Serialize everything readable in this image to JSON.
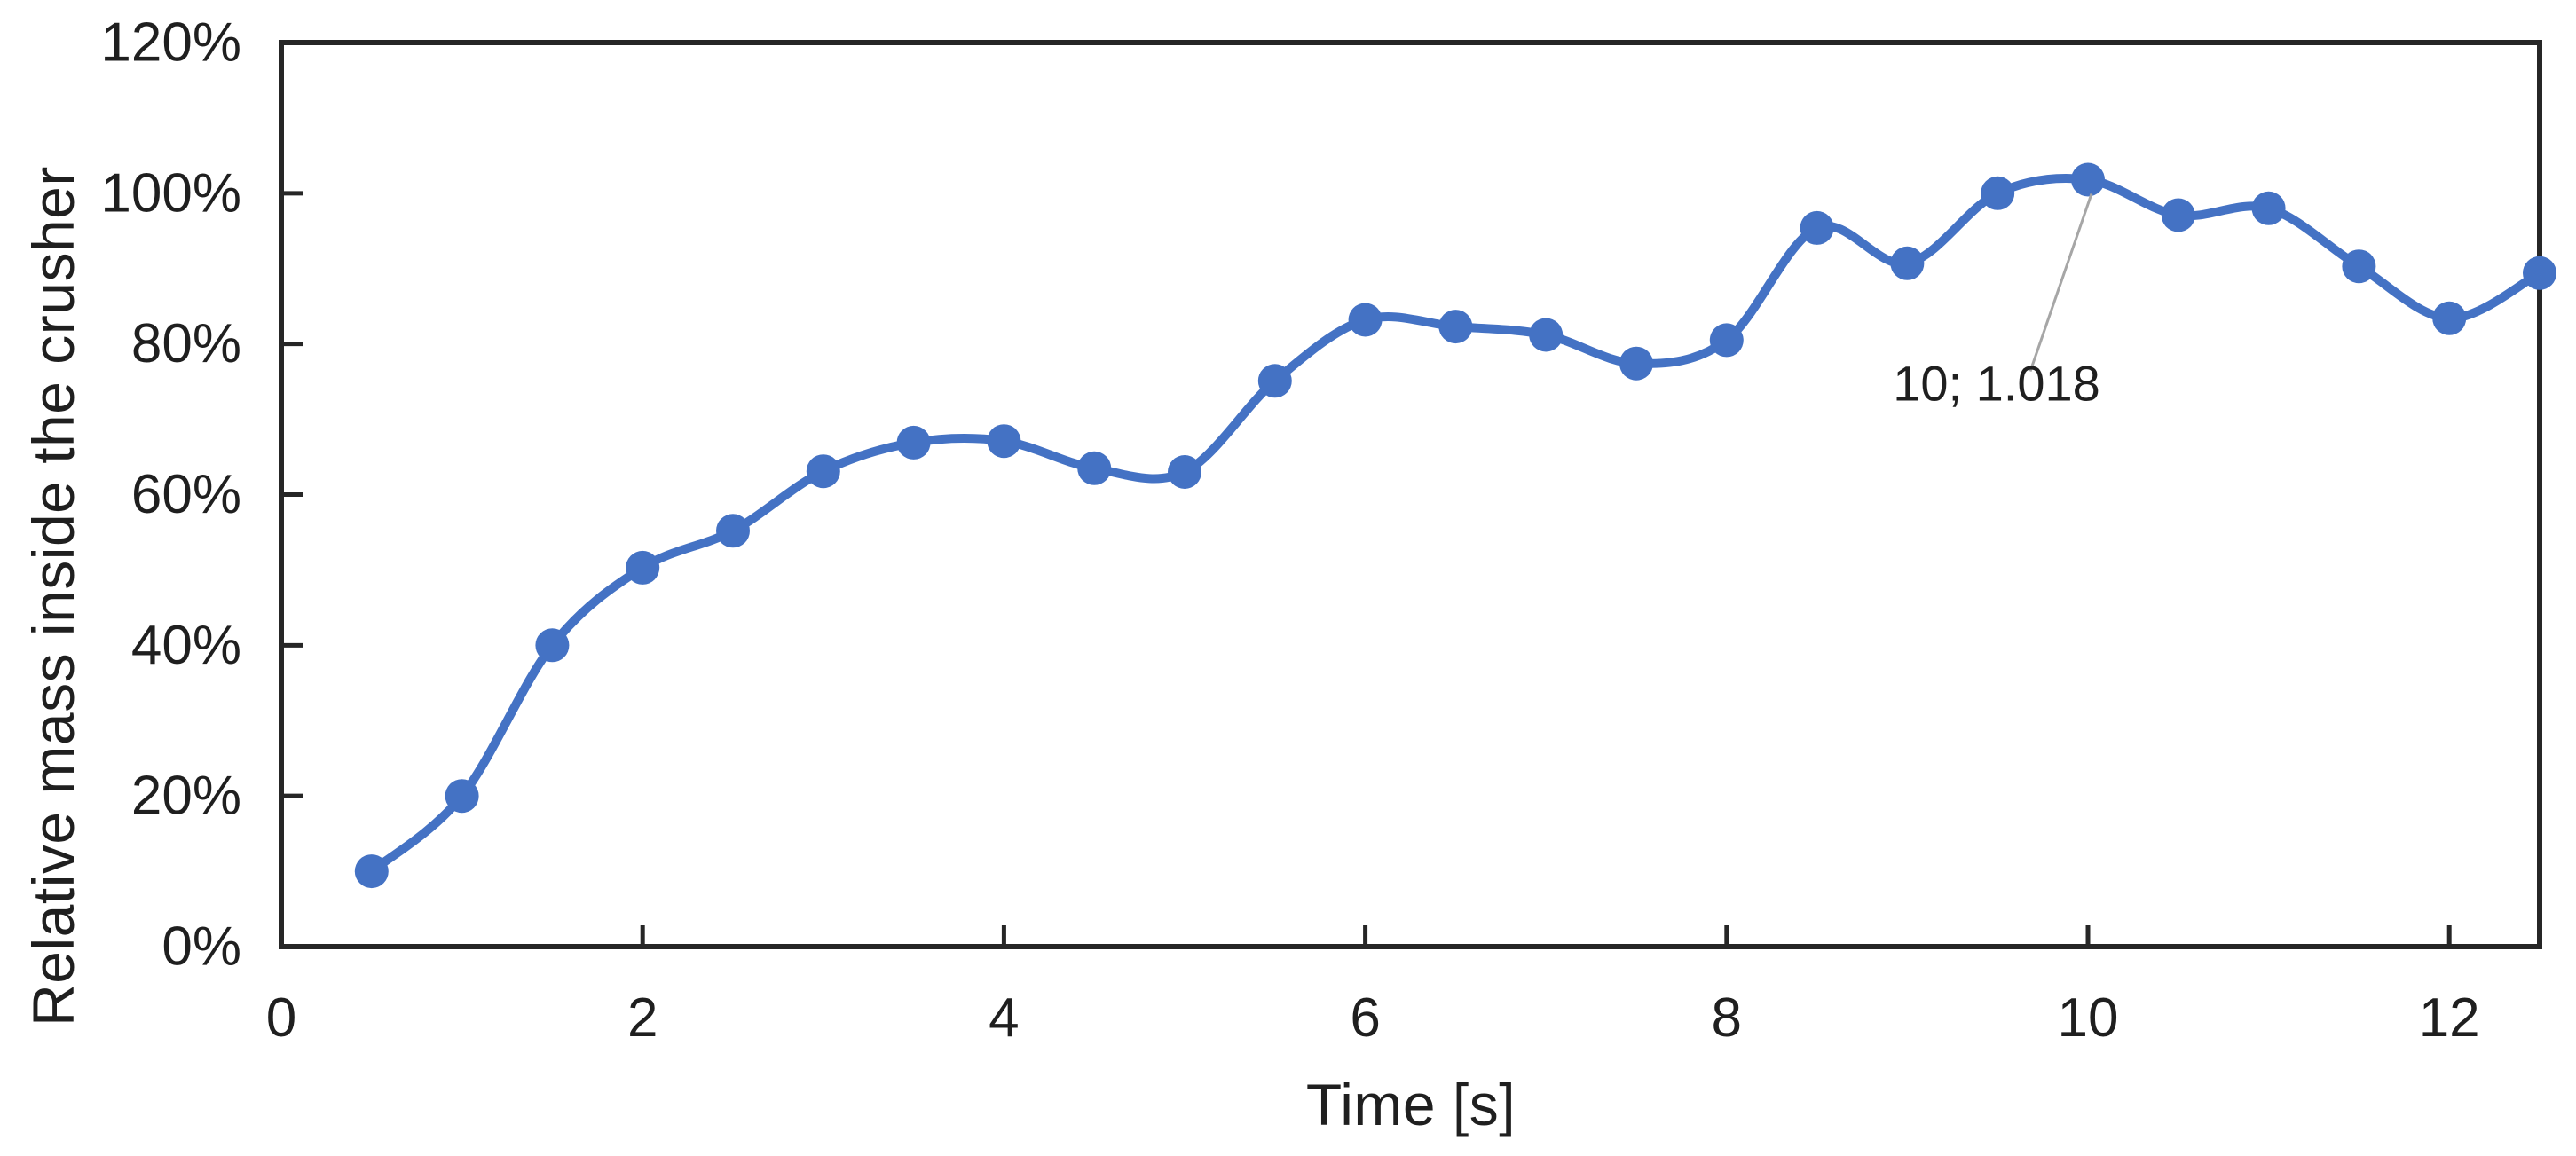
{
  "figure": {
    "background": "#ffffff"
  },
  "colors": {
    "series": "#4472C4",
    "axis": "#262626",
    "text": "#1f1f1f",
    "leader": "#a6a6a6"
  },
  "chart_data": {
    "type": "line",
    "title": "",
    "xlabel": "Time [s]",
    "ylabel": "Relative mass inside the crusher",
    "xlim": [
      0,
      12.5
    ],
    "ylim": [
      0,
      1.2
    ],
    "grid": false,
    "legend": false,
    "smoothed": true,
    "x_ticks": [
      {
        "value": 0,
        "label": "0"
      },
      {
        "value": 2,
        "label": "2"
      },
      {
        "value": 4,
        "label": "4"
      },
      {
        "value": 6,
        "label": "6"
      },
      {
        "value": 8,
        "label": "8"
      },
      {
        "value": 10,
        "label": "10"
      },
      {
        "value": 12,
        "label": "12"
      }
    ],
    "y_ticks": [
      {
        "value": 0.0,
        "label": "0%"
      },
      {
        "value": 0.2,
        "label": "20%"
      },
      {
        "value": 0.4,
        "label": "40%"
      },
      {
        "value": 0.6,
        "label": "60%"
      },
      {
        "value": 0.8,
        "label": "80%"
      },
      {
        "value": 1.0,
        "label": "100%"
      },
      {
        "value": 1.2,
        "label": "120%"
      }
    ],
    "series": [
      {
        "name": "Relative mass inside the crusher",
        "color": "#4472C4",
        "marker": "circle",
        "x": [
          0.5,
          1.0,
          1.5,
          2.0,
          2.5,
          3.0,
          3.5,
          4.0,
          4.5,
          5.0,
          5.5,
          6.0,
          6.5,
          7.0,
          7.5,
          8.0,
          8.5,
          9.0,
          9.5,
          10.0,
          10.5,
          11.0,
          11.5,
          12.0,
          12.5
        ],
        "y": [
          0.1,
          0.2,
          0.4,
          0.503,
          0.552,
          0.631,
          0.669,
          0.671,
          0.635,
          0.63,
          0.751,
          0.832,
          0.823,
          0.812,
          0.774,
          0.805,
          0.954,
          0.907,
          1.0,
          1.018,
          0.971,
          0.98,
          0.903,
          0.834,
          0.894
        ]
      }
    ],
    "annotation": {
      "text": "10; 1.018",
      "x": 10,
      "y": 1.018
    }
  }
}
